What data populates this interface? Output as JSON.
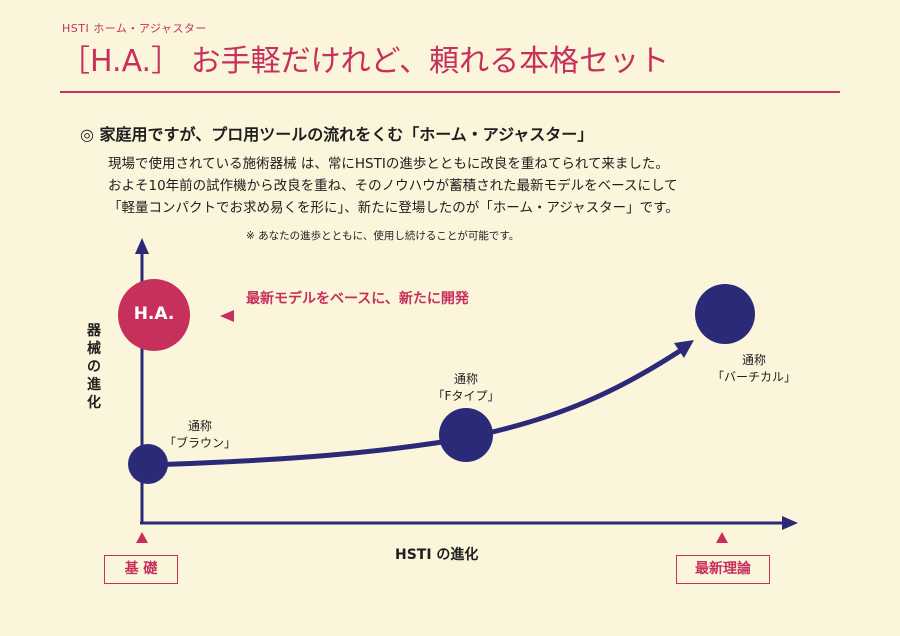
{
  "header": {
    "kicker": "HSTI ホーム・アジャスター",
    "title": "［H.A.］ お手軽だけれど、頼れる本格セット"
  },
  "section": {
    "heading": "◎ 家庭用ですが、プロ用ツールの流れをくむ「ホーム・アジャスター」",
    "lines": [
      "現場で使用されている施術器械 は、常にHSTIの進歩とともに改良を重ねてられて来ました。",
      "およそ10年前の試作機から改良を重ね、そのノウハウが蓄積された最新モデルをベースにして",
      "「軽量コンパクトでお求め易くを形に」、新たに登場したのが「ホーム・アジャスター」です。"
    ],
    "note": "※ あなたの進歩とともに、使用し続けることが可能です。"
  },
  "diagram": {
    "y_axis_label": "器械の進化",
    "x_axis_label": "HSTI の進化",
    "start_tag": "基 礎",
    "end_tag": "最新理論",
    "ha_label": "H.A.",
    "arrow_label": "最新モデルをベースに、新たに開発",
    "nodes": [
      {
        "line1": "通称",
        "line2": "「ブラウン」"
      },
      {
        "line1": "通称",
        "line2": "「Fタイプ」"
      },
      {
        "line1": "通称",
        "line2": "「バーチカル」"
      }
    ],
    "colors": {
      "navy": "#2b2a78",
      "crimson": "#c7305b",
      "background": "#fbf5dc"
    }
  }
}
